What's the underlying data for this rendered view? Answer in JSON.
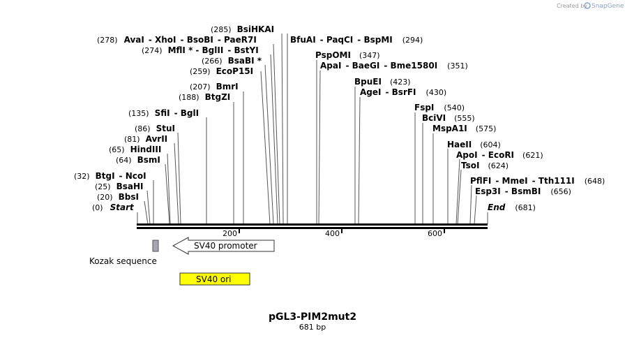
{
  "credit": {
    "prefix": "Created by",
    "brand": "SnapGene"
  },
  "map": {
    "title": "pGL3-PIM2mut2",
    "length_label": "681 bp"
  },
  "ruler": {
    "ticks": [
      "200",
      "400",
      "600"
    ]
  },
  "labels": [
    {
      "pos": "(285)",
      "names": [
        "BsiHKAI"
      ]
    },
    {
      "pos": "(278)",
      "names": [
        "AvaI",
        "XhoI",
        "BsoBI",
        "PaeR7I"
      ]
    },
    {
      "pos": "(274)",
      "names": [
        "MflI *",
        "BglII",
        "BstYI"
      ]
    },
    {
      "pos": "(266)",
      "names": [
        "BsaBI *"
      ]
    },
    {
      "pos": "(259)",
      "names": [
        "EcoP15I"
      ]
    },
    {
      "pos": "(207)",
      "names": [
        "BmrI"
      ]
    },
    {
      "pos": "(188)",
      "names": [
        "BtgZI"
      ]
    },
    {
      "pos": "(135)",
      "names": [
        "SfiI",
        "BglI"
      ]
    },
    {
      "pos": "(86)",
      "names": [
        "StuI"
      ]
    },
    {
      "pos": "(81)",
      "names": [
        "AvrII"
      ]
    },
    {
      "pos": "(65)",
      "names": [
        "HindIII"
      ]
    },
    {
      "pos": "(64)",
      "names": [
        "BsmI"
      ]
    },
    {
      "pos": "(32)",
      "names": [
        "BtgI",
        "NcoI"
      ]
    },
    {
      "pos": "(25)",
      "names": [
        "BsaHI"
      ]
    },
    {
      "pos": "(20)",
      "names": [
        "BbsI"
      ]
    },
    {
      "pos": "(0)",
      "names": [
        "Start"
      ]
    },
    {
      "pos": "(294)",
      "names": [
        "BfuAI",
        "PaqCI",
        "BspMI"
      ]
    },
    {
      "pos": "(347)",
      "names": [
        "PspOMI"
      ]
    },
    {
      "pos": "(351)",
      "names": [
        "ApaI",
        "BaeGI",
        "Bme1580I"
      ]
    },
    {
      "pos": "(423)",
      "names": [
        "BpuEI"
      ]
    },
    {
      "pos": "(430)",
      "names": [
        "AgeI",
        "BsrFI"
      ]
    },
    {
      "pos": "(540)",
      "names": [
        "FspI"
      ]
    },
    {
      "pos": "(555)",
      "names": [
        "BciVI"
      ]
    },
    {
      "pos": "(575)",
      "names": [
        "MspA1I"
      ]
    },
    {
      "pos": "(604)",
      "names": [
        "HaeII"
      ]
    },
    {
      "pos": "(621)",
      "names": [
        "ApoI",
        "EcoRI"
      ]
    },
    {
      "pos": "(624)",
      "names": [
        "TsoI"
      ]
    },
    {
      "pos": "(648)",
      "names": [
        "PflFI",
        "MmeI",
        "Tth111I"
      ]
    },
    {
      "pos": "(656)",
      "names": [
        "Esp3I",
        "BsmBI"
      ]
    },
    {
      "pos": "(681)",
      "names": [
        "End"
      ]
    }
  ],
  "features": {
    "kozak": {
      "label": "Kozak sequence",
      "color": "#a6a6b3"
    },
    "sv40_promoter": {
      "label": "SV40 promoter",
      "color": "#ffffff"
    },
    "sv40_ori": {
      "label": "SV40 ori",
      "color": "#ffff00"
    }
  }
}
